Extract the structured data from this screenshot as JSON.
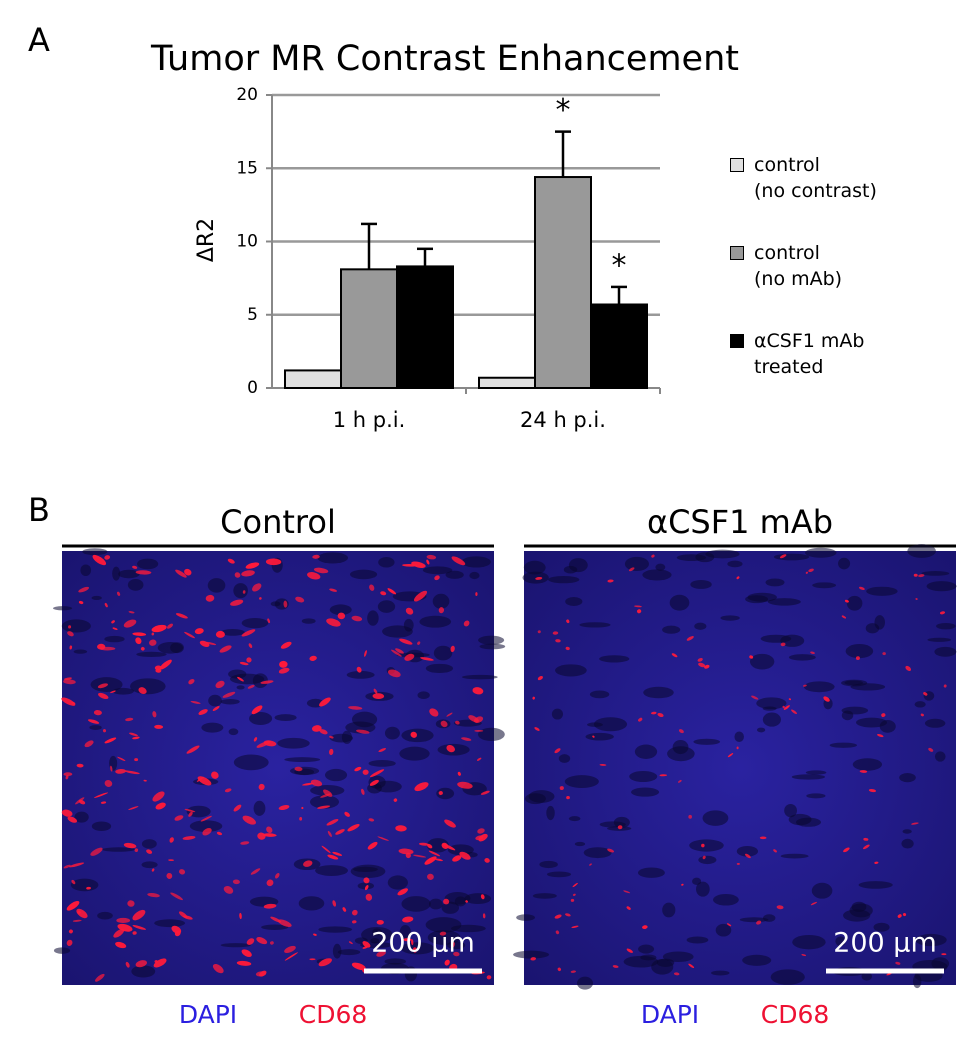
{
  "chart_data": {
    "type": "bar",
    "title": "Tumor MR Contrast Enhancement",
    "y_label": "ΔR2",
    "categories": [
      "1 h p.i.",
      "24 h p.i."
    ],
    "series": [
      {
        "name": "control\n(no contrast)",
        "color": "#e0e0e0",
        "values": [
          1.2,
          0.7
        ]
      },
      {
        "name": "control\n(no mAb)",
        "color": "#999999",
        "values": [
          8.1,
          14.4
        ],
        "errors": [
          3.1,
          3.1
        ],
        "annotations": [
          null,
          "*"
        ]
      },
      {
        "name": "αCSF1 mAb\ntreated",
        "color": "#000000",
        "values": [
          8.3,
          5.7
        ],
        "errors": [
          1.2,
          1.2
        ],
        "annotations": [
          null,
          "*"
        ]
      }
    ],
    "ylim": [
      0,
      20
    ],
    "yticks": [
      0,
      5,
      10,
      15,
      20
    ],
    "grid": true
  },
  "panel_labels": [
    "A",
    "B"
  ],
  "images": [
    {
      "title": "Control",
      "scale_bar": "200 μm",
      "channels": [
        "DAPI",
        "CD68"
      ],
      "channel_colors": [
        "#2b1fe0",
        "#ee1133"
      ]
    },
    {
      "title": "αCSF1 mAb",
      "scale_bar": "200 μm",
      "channels": [
        "DAPI",
        "CD68"
      ],
      "channel_colors": [
        "#2b1fe0",
        "#ee1133"
      ]
    }
  ]
}
